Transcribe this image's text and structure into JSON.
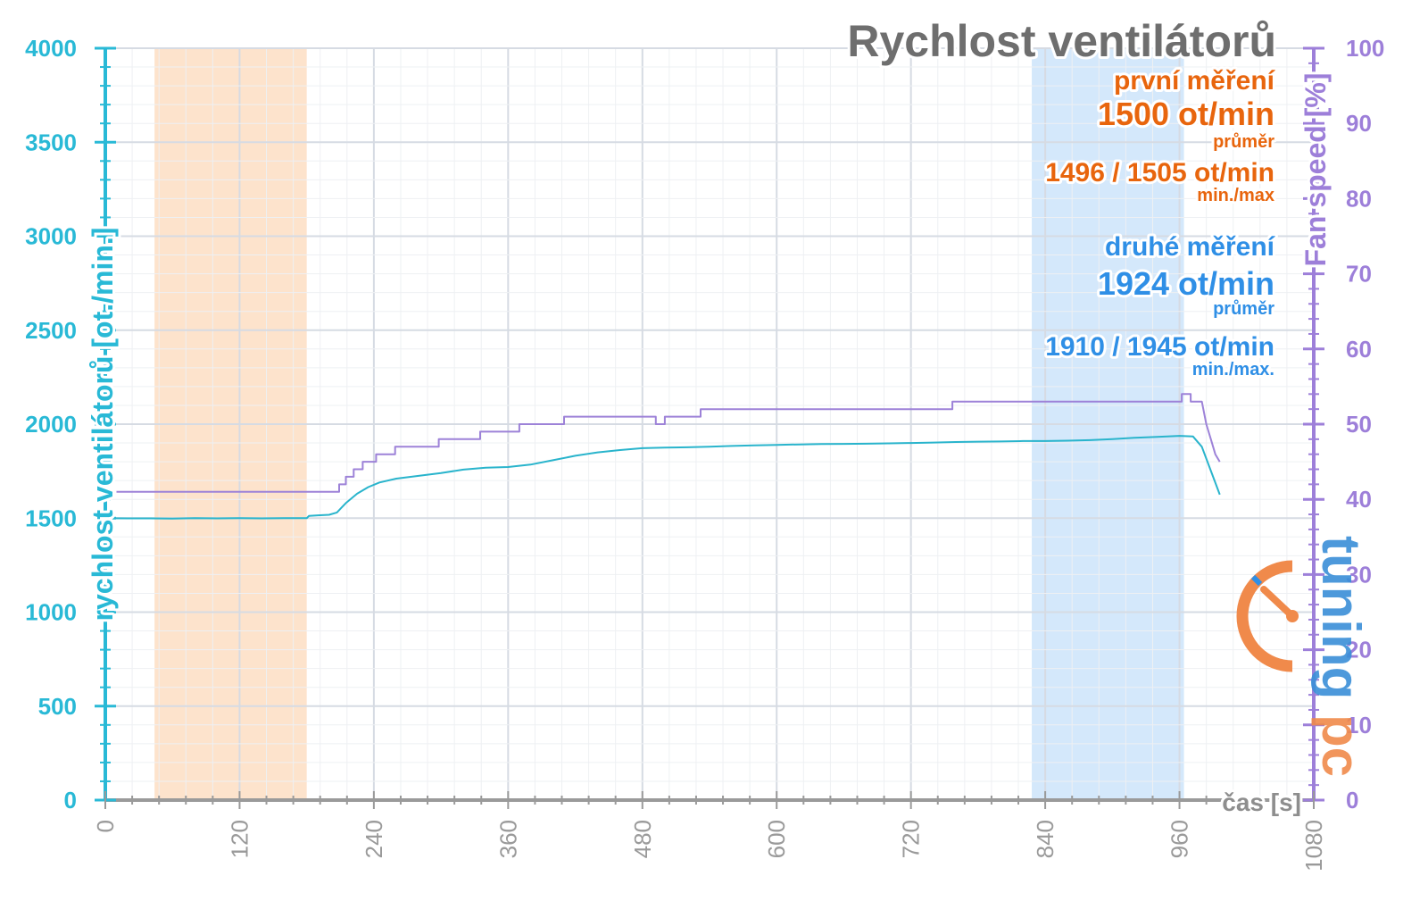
{
  "chart_data": {
    "type": "line",
    "title": "Rychlost ventilátorů",
    "xlabel": "čas [s]",
    "ylabel_left": "rychlost ventilátorů [ot./min.]",
    "ylabel_right": "Fan speed [%]",
    "xlim": [
      0,
      1080
    ],
    "ylim_left": [
      0,
      4000
    ],
    "ylim_right": [
      0,
      100
    ],
    "x_ticks": [
      "0",
      "120",
      "240",
      "360",
      "480",
      "600",
      "720",
      "840",
      "960",
      "1080"
    ],
    "y_ticks_left": [
      "0",
      "500",
      "1000",
      "1500",
      "2000",
      "2500",
      "3000",
      "3500",
      "4000"
    ],
    "y_ticks_right": [
      "0",
      "10",
      "20",
      "30",
      "40",
      "50",
      "60",
      "70",
      "80",
      "90",
      "100"
    ],
    "grid": true,
    "shaded_regions": [
      {
        "x_start": 44,
        "x_end": 180,
        "color": "#fde3cc"
      },
      {
        "x_start": 828,
        "x_end": 964,
        "color": "#d4e8fb"
      }
    ],
    "series": [
      {
        "axis": "left",
        "color": "#29b4cc",
        "x": [
          0,
          20,
          40,
          60,
          80,
          100,
          120,
          140,
          160,
          180,
          182,
          190,
          200,
          207,
          215,
          225,
          235,
          245,
          260,
          280,
          300,
          320,
          340,
          360,
          380,
          400,
          420,
          440,
          460,
          480,
          500,
          520,
          540,
          560,
          580,
          600,
          620,
          640,
          660,
          680,
          700,
          720,
          740,
          760,
          780,
          800,
          820,
          840,
          860,
          880,
          900,
          920,
          940,
          960,
          972,
          980,
          990,
          996
        ],
        "values": [
          1500,
          1499,
          1499,
          1498,
          1500,
          1499,
          1500,
          1499,
          1500,
          1500,
          1512,
          1515,
          1518,
          1530,
          1580,
          1630,
          1665,
          1690,
          1710,
          1725,
          1740,
          1758,
          1768,
          1772,
          1785,
          1808,
          1832,
          1850,
          1862,
          1872,
          1875,
          1877,
          1880,
          1884,
          1887,
          1890,
          1892,
          1894,
          1895,
          1896,
          1898,
          1900,
          1902,
          1905,
          1907,
          1908,
          1910,
          1910,
          1912,
          1915,
          1920,
          1928,
          1932,
          1938,
          1935,
          1880,
          1720,
          1625
        ]
      },
      {
        "axis": "right",
        "color": "#9d82d8",
        "x": [
          10,
          209,
          209,
          215,
          215,
          222,
          222,
          230,
          230,
          242,
          242,
          259,
          259,
          298,
          298,
          335,
          335,
          370,
          370,
          410,
          410,
          492,
          492,
          500,
          500,
          532,
          532,
          757,
          757,
          962,
          962,
          970,
          970,
          980,
          984,
          988,
          992,
          996
        ],
        "values": [
          41,
          41,
          42,
          42,
          43,
          43,
          44,
          44,
          45,
          45,
          46,
          46,
          47,
          47,
          48,
          48,
          49,
          49,
          50,
          50,
          51,
          51,
          50,
          50,
          51,
          51,
          52,
          52,
          53,
          53,
          54,
          54,
          53,
          53,
          50,
          48,
          46,
          45
        ]
      }
    ],
    "annotations": {
      "first": {
        "heading": "první měření",
        "avg_value": "1500 ot/min",
        "avg_label": "průměr",
        "minmax_value": "1496 / 1505 ot/min",
        "minmax_label": "min./max"
      },
      "second": {
        "heading": "druhé měření",
        "avg_value": "1924 ot/min",
        "avg_label": "průměr",
        "minmax_value": "1910 / 1945 ot/min",
        "minmax_label": "min./max."
      }
    },
    "watermark": "pctuning"
  }
}
